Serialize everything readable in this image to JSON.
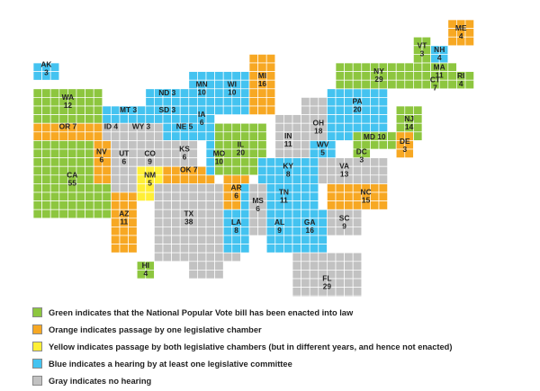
{
  "colors": {
    "green": "#8dc63f",
    "orange": "#f7a823",
    "yellow": "#ffef37",
    "blue": "#44c3f0",
    "gray": "#c2c2c2"
  },
  "states": [
    {
      "id": "AK",
      "abbr": "AK",
      "ev": "3",
      "status": "blue"
    },
    {
      "id": "WA",
      "abbr": "WA",
      "ev": "12",
      "status": "green"
    },
    {
      "id": "OR",
      "abbr": "OR 7",
      "ev": "",
      "status": "orange"
    },
    {
      "id": "CA",
      "abbr": "CA",
      "ev": "55",
      "status": "green"
    },
    {
      "id": "ID",
      "abbr": "ID 4",
      "ev": "",
      "status": "gray"
    },
    {
      "id": "NV",
      "abbr": "NV",
      "ev": "6",
      "status": "orange"
    },
    {
      "id": "UT",
      "abbr": "UT",
      "ev": "6",
      "status": "gray"
    },
    {
      "id": "AZ",
      "abbr": "AZ",
      "ev": "11",
      "status": "orange"
    },
    {
      "id": "MT",
      "abbr": "MT 3",
      "ev": "",
      "status": "blue"
    },
    {
      "id": "WY",
      "abbr": "WY 3",
      "ev": "",
      "status": "gray"
    },
    {
      "id": "CO",
      "abbr": "CO",
      "ev": "9",
      "status": "gray"
    },
    {
      "id": "NM",
      "abbr": "NM",
      "ev": "5",
      "status": "yellow"
    },
    {
      "id": "ND",
      "abbr": "ND 3",
      "ev": "",
      "status": "blue"
    },
    {
      "id": "SD",
      "abbr": "SD 3",
      "ev": "",
      "status": "blue"
    },
    {
      "id": "NE",
      "abbr": "NE 5",
      "ev": "",
      "status": "blue"
    },
    {
      "id": "KS",
      "abbr": "KS",
      "ev": "6",
      "status": "gray"
    },
    {
      "id": "OK",
      "abbr": "OK 7",
      "ev": "",
      "status": "orange"
    },
    {
      "id": "TX",
      "abbr": "TX",
      "ev": "38",
      "status": "gray"
    },
    {
      "id": "MN",
      "abbr": "MN",
      "ev": "10",
      "status": "blue"
    },
    {
      "id": "IA",
      "abbr": "IA",
      "ev": "6",
      "status": "blue"
    },
    {
      "id": "MO",
      "abbr": "MO",
      "ev": "10",
      "status": "blue"
    },
    {
      "id": "AR",
      "abbr": "AR",
      "ev": "6",
      "status": "orange"
    },
    {
      "id": "LA",
      "abbr": "LA",
      "ev": "8",
      "status": "blue"
    },
    {
      "id": "WI",
      "abbr": "WI",
      "ev": "10",
      "status": "blue"
    },
    {
      "id": "IL",
      "abbr": "IL",
      "ev": "20",
      "status": "green"
    },
    {
      "id": "MI",
      "abbr": "MI",
      "ev": "16",
      "status": "orange"
    },
    {
      "id": "IN",
      "abbr": "IN",
      "ev": "11",
      "status": "gray"
    },
    {
      "id": "OH",
      "abbr": "OH",
      "ev": "18",
      "status": "gray"
    },
    {
      "id": "KY",
      "abbr": "KY",
      "ev": "8",
      "status": "blue"
    },
    {
      "id": "TN",
      "abbr": "TN",
      "ev": "11",
      "status": "blue"
    },
    {
      "id": "MS",
      "abbr": "MS",
      "ev": "6",
      "status": "gray"
    },
    {
      "id": "AL",
      "abbr": "AL",
      "ev": "9",
      "status": "blue"
    },
    {
      "id": "GA",
      "abbr": "GA",
      "ev": "16",
      "status": "blue"
    },
    {
      "id": "FL",
      "abbr": "FL",
      "ev": "29",
      "status": "gray"
    },
    {
      "id": "SC",
      "abbr": "SC",
      "ev": "9",
      "status": "gray"
    },
    {
      "id": "NC",
      "abbr": "NC",
      "ev": "15",
      "status": "orange"
    },
    {
      "id": "VA",
      "abbr": "VA",
      "ev": "13",
      "status": "gray"
    },
    {
      "id": "WV",
      "abbr": "WV",
      "ev": "5",
      "status": "blue"
    },
    {
      "id": "PA",
      "abbr": "PA",
      "ev": "20",
      "status": "blue"
    },
    {
      "id": "NY",
      "abbr": "NY",
      "ev": "29",
      "status": "green"
    },
    {
      "id": "NJ",
      "abbr": "NJ",
      "ev": "14",
      "status": "green"
    },
    {
      "id": "MD",
      "abbr": "MD 10",
      "ev": "",
      "status": "green"
    },
    {
      "id": "DC",
      "abbr": "DC",
      "ev": "3",
      "status": "green"
    },
    {
      "id": "DE",
      "abbr": "DE",
      "ev": "3",
      "status": "orange"
    },
    {
      "id": "VT",
      "abbr": "VT",
      "ev": "3",
      "status": "green"
    },
    {
      "id": "NH",
      "abbr": "NH",
      "ev": "4",
      "status": "blue"
    },
    {
      "id": "ME",
      "abbr": "ME",
      "ev": "4",
      "status": "orange"
    },
    {
      "id": "MA",
      "abbr": "MA",
      "ev": "11",
      "status": "green"
    },
    {
      "id": "CT",
      "abbr": "CT",
      "ev": "7",
      "status": "green"
    },
    {
      "id": "RI",
      "abbr": "RI",
      "ev": "4",
      "status": "green"
    },
    {
      "id": "HI",
      "abbr": "HI",
      "ev": "4",
      "status": "green"
    }
  ],
  "legend": [
    {
      "status": "green",
      "label": "Green indicates that the National Popular Vote bill has been enacted into law"
    },
    {
      "status": "orange",
      "label": "Orange indicates passage by one legislative chamber"
    },
    {
      "status": "yellow",
      "label": "Yellow indicates passage by both legislative chambers (but in different years, and hence not enacted)"
    },
    {
      "status": "blue",
      "label": "Blue indicates a hearing by at least one legislative committee"
    },
    {
      "status": "gray",
      "label": "Gray indicates no hearing"
    }
  ]
}
